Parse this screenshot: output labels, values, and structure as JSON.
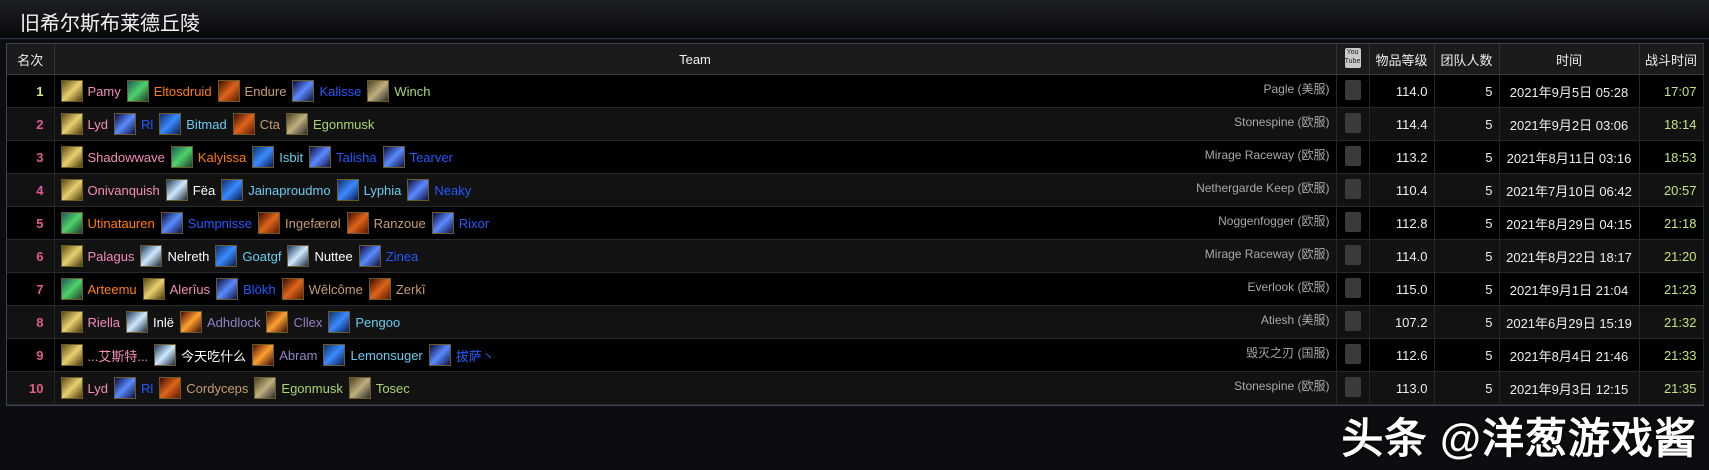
{
  "title": "旧希尔斯布莱德丘陵",
  "headers": {
    "rank": "名次",
    "team": "Team",
    "video": "You Tube",
    "ilvl": "物品等级",
    "size": "团队人数",
    "time": "时间",
    "duration": "战斗时间"
  },
  "class_colors": {
    "paladin": "#F58CBA",
    "druid": "#FF7D0A",
    "warrior": "#C79C6E",
    "mage": "#69CCF0",
    "shaman": "#2459FF",
    "hunter": "#ABD473",
    "priest": "#FFFFFF",
    "warlock": "#9482C9",
    "rogue": "#FFF569"
  },
  "rows": [
    {
      "rank": "1",
      "members": [
        {
          "name": "Pamy",
          "cls": "paladin"
        },
        {
          "name": "Eltosdruid",
          "cls": "druid"
        },
        {
          "name": "Endure",
          "cls": "warrior"
        },
        {
          "name": "Kalisse",
          "cls": "shaman"
        },
        {
          "name": "Winch",
          "cls": "hunter"
        }
      ],
      "server": "Pagle (美服)",
      "ilvl": "114.0",
      "size": "5",
      "time": "2021年9月5日 05:28",
      "duration": "17:07"
    },
    {
      "rank": "2",
      "members": [
        {
          "name": "Lyd",
          "cls": "paladin"
        },
        {
          "name": "Rl",
          "cls": "shaman"
        },
        {
          "name": "Bitmad",
          "cls": "mage"
        },
        {
          "name": "Cta",
          "cls": "warrior"
        },
        {
          "name": "Egonmusk",
          "cls": "hunter"
        }
      ],
      "server": "Stonespine (欧服)",
      "ilvl": "114.4",
      "size": "5",
      "time": "2021年9月2日 03:06",
      "duration": "18:14"
    },
    {
      "rank": "3",
      "members": [
        {
          "name": "Shadowwave",
          "cls": "paladin"
        },
        {
          "name": "Kalyissa",
          "cls": "druid"
        },
        {
          "name": "Isbit",
          "cls": "mage"
        },
        {
          "name": "Talisha",
          "cls": "shaman"
        },
        {
          "name": "Tearver",
          "cls": "shaman"
        }
      ],
      "server": "Mirage Raceway (欧服)",
      "ilvl": "113.2",
      "size": "5",
      "time": "2021年8月11日 03:16",
      "duration": "18:53"
    },
    {
      "rank": "4",
      "members": [
        {
          "name": "Onivanquish",
          "cls": "paladin"
        },
        {
          "name": "Fëa",
          "cls": "priest"
        },
        {
          "name": "Jainaproudmo",
          "cls": "mage"
        },
        {
          "name": "Lyphia",
          "cls": "mage"
        },
        {
          "name": "Neaky",
          "cls": "shaman"
        }
      ],
      "server": "Nethergarde Keep (欧服)",
      "ilvl": "110.4",
      "size": "5",
      "time": "2021年7月10日 06:42",
      "duration": "20:57"
    },
    {
      "rank": "5",
      "members": [
        {
          "name": "Utinatauren",
          "cls": "druid"
        },
        {
          "name": "Sumpnisse",
          "cls": "shaman"
        },
        {
          "name": "Ingefærøl",
          "cls": "warrior"
        },
        {
          "name": "Ranzoue",
          "cls": "warrior"
        },
        {
          "name": "Rixor",
          "cls": "shaman"
        }
      ],
      "server": "Noggenfogger (欧服)",
      "ilvl": "112.8",
      "size": "5",
      "time": "2021年8月29日 04:15",
      "duration": "21:18"
    },
    {
      "rank": "6",
      "members": [
        {
          "name": "Palagus",
          "cls": "paladin"
        },
        {
          "name": "Nelreth",
          "cls": "priest"
        },
        {
          "name": "Goatgf",
          "cls": "mage"
        },
        {
          "name": "Nuttee",
          "cls": "priest"
        },
        {
          "name": "Zinea",
          "cls": "shaman"
        }
      ],
      "server": "Mirage Raceway (欧服)",
      "ilvl": "114.0",
      "size": "5",
      "time": "2021年8月22日 18:17",
      "duration": "21:20"
    },
    {
      "rank": "7",
      "members": [
        {
          "name": "Arteemu",
          "cls": "druid"
        },
        {
          "name": "Alerîus",
          "cls": "paladin"
        },
        {
          "name": "Blökh",
          "cls": "shaman"
        },
        {
          "name": "Wêlcôme",
          "cls": "warrior"
        },
        {
          "name": "Zerkî",
          "cls": "warrior"
        }
      ],
      "server": "Everlook (欧服)",
      "ilvl": "115.0",
      "size": "5",
      "time": "2021年9月1日 21:04",
      "duration": "21:23"
    },
    {
      "rank": "8",
      "members": [
        {
          "name": "Riella",
          "cls": "paladin"
        },
        {
          "name": "Inlë",
          "cls": "priest"
        },
        {
          "name": "Adhdlock",
          "cls": "warlock"
        },
        {
          "name": "Cllex",
          "cls": "warlock"
        },
        {
          "name": "Pengoo",
          "cls": "mage"
        }
      ],
      "server": "Atiesh (美服)",
      "ilvl": "107.2",
      "size": "5",
      "time": "2021年6月29日 15:19",
      "duration": "21:32"
    },
    {
      "rank": "9",
      "members": [
        {
          "name": "...艾斯特...",
          "cls": "paladin"
        },
        {
          "name": "今天吃什么",
          "cls": "priest"
        },
        {
          "name": "Abram",
          "cls": "warlock"
        },
        {
          "name": "Lemonsuger",
          "cls": "mage"
        },
        {
          "name": "拔萨丶",
          "cls": "shaman"
        }
      ],
      "server": "毁灭之刃 (国服)",
      "ilvl": "112.6",
      "size": "5",
      "time": "2021年8月4日 21:46",
      "duration": "21:33"
    },
    {
      "rank": "10",
      "members": [
        {
          "name": "Lyd",
          "cls": "paladin"
        },
        {
          "name": "Rl",
          "cls": "shaman"
        },
        {
          "name": "Cordyceps",
          "cls": "warrior"
        },
        {
          "name": "Egonmusk",
          "cls": "hunter"
        },
        {
          "name": "Tosec",
          "cls": "hunter"
        }
      ],
      "server": "Stonespine (欧服)",
      "ilvl": "113.0",
      "size": "5",
      "time": "2021年9月3日 12:15",
      "duration": "21:35"
    }
  ],
  "watermark": "头条 @洋葱游戏酱"
}
